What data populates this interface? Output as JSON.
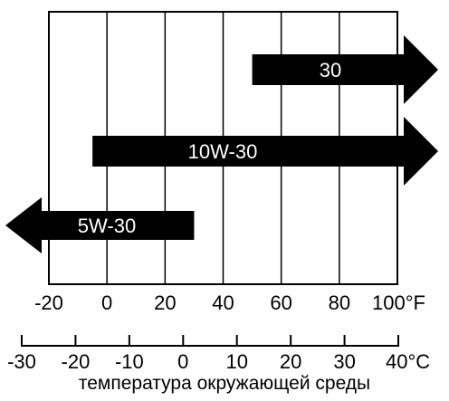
{
  "chart_data": {
    "type": "bar",
    "fahrenheit_axis": {
      "ticks": [
        -20,
        0,
        20,
        40,
        60,
        80,
        100
      ],
      "tick_labels": [
        "-20",
        "0",
        "20",
        "40",
        "60",
        "80",
        "100°F"
      ]
    },
    "celsius_axis": {
      "ticks": [
        -30,
        -20,
        -10,
        0,
        10,
        20,
        30,
        40
      ],
      "tick_labels": [
        "-30",
        "-20",
        "-10",
        "0",
        "10",
        "20",
        "30",
        "40°C"
      ]
    },
    "bars": [
      {
        "label": "30",
        "from_f": 50,
        "to_f": 100,
        "extends": "right"
      },
      {
        "label": "10W-30",
        "from_f": -5,
        "to_f": 100,
        "extends": "right"
      },
      {
        "label": "5W-30",
        "from_f": -20,
        "to_f": 30,
        "extends": "left"
      }
    ],
    "xlabel": "температура окружающей среды"
  },
  "colors": {
    "bar": "#000000",
    "bar_text": "#ffffff",
    "grid": "#000000",
    "background": "#ffffff"
  }
}
